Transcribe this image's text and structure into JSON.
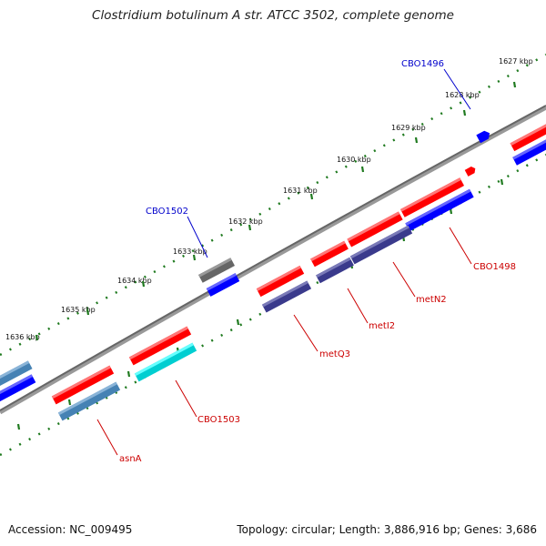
{
  "title": "Clostridium botulinum A str. ATCC 3502, complete genome",
  "footer": {
    "accession": "Accession: NC_009495",
    "summary": "Topology: circular; Length: 3,886,916 bp; Genes: 3,686"
  },
  "ticks": [
    {
      "label": "1627 kbp"
    },
    {
      "label": "1628 kbp"
    },
    {
      "label": "1629 kbp"
    },
    {
      "label": "1630 kbp"
    },
    {
      "label": "1631 kbp"
    },
    {
      "label": "1632 kbp"
    },
    {
      "label": "1633 kbp"
    },
    {
      "label": "1634 kbp"
    },
    {
      "label": "1635 kbp"
    },
    {
      "label": "1636 kbp"
    }
  ],
  "callouts": [
    {
      "label": "CBO1496",
      "color": "#0000cc"
    },
    {
      "label": "CBO1502",
      "color": "#0000cc"
    },
    {
      "label": "CBO1498",
      "color": "#cc0000"
    },
    {
      "label": "metN2",
      "color": "#cc0000"
    },
    {
      "label": "metI2",
      "color": "#cc0000"
    },
    {
      "label": "metQ3",
      "color": "#cc0000"
    },
    {
      "label": "CBO1503",
      "color": "#cc0000"
    },
    {
      "label": "asnA",
      "color": "#cc0000"
    }
  ],
  "colors": {
    "cds": "#ff0000",
    "forward_gene": "#0000ff",
    "reverse_gene": "#3a3a8c",
    "rna": "#4682b4",
    "highlight_gene": "#00e5ee",
    "pseudo_gene": "#666666",
    "backbone": "#777777",
    "tick_mark": "#1f7a1f"
  }
}
